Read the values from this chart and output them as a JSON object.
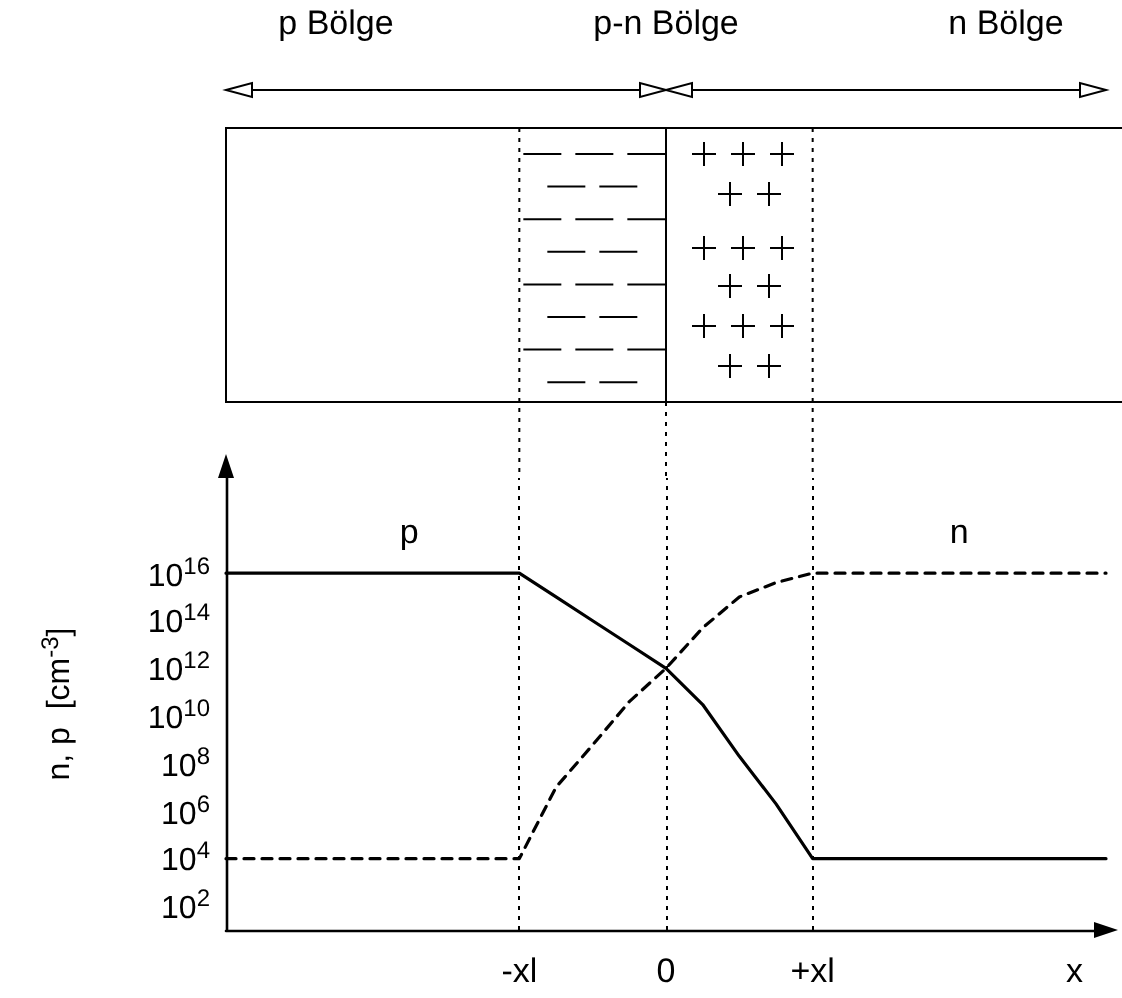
{
  "chart_data": {
    "type": "line",
    "ylabel": "n, p  [cm$^{-3}$]",
    "xlabel": "x",
    "annotations": [
      "p Bölge",
      "p-n Bölge",
      "n Bölge"
    ],
    "log": "y",
    "grid": false,
    "legend": false,
    "marker": "none",
    "categories": [
      null,
      null,
      null,
      null,
      null,
      null,
      null,
      null,
      "-xl",
      null,
      null,
      null,
      "0",
      null,
      null,
      null,
      "+xl",
      null,
      null,
      null,
      null,
      null,
      null,
      null,
      null
    ],
    "ylim": [
      10,
      1e+20
    ],
    "yticks": [
      {
        "value": 100,
        "label": "10$^{2}$"
      },
      {
        "value": 10000,
        "label": "10$^{4}$"
      },
      {
        "value": 1000000.0,
        "label": "10$^{6}$"
      },
      {
        "value": 100000000.0,
        "label": "10$^{8}$"
      },
      {
        "value": 10000000000.0,
        "label": "10$^{10}$"
      },
      {
        "value": 1000000000000.0,
        "label": "10$^{12}$"
      },
      {
        "value": 100000000000000.0,
        "label": "10$^{14}$"
      },
      {
        "value": 1e+16,
        "label": "10$^{16}$"
      }
    ],
    "ref_lines": [
      {
        "axis": "x",
        "value": "-xl",
        "line_style": "dotted"
      },
      {
        "axis": "x",
        "value": "0",
        "line_style": "dotted"
      },
      {
        "axis": "x",
        "value": "+xl",
        "line_style": "dotted"
      }
    ],
    "series": [
      {
        "name": "p",
        "color": "#000000",
        "line_style": "solid",
        "values": [
          1e+16,
          1e+16,
          1e+16,
          1e+16,
          1e+16,
          1e+16,
          1e+16,
          1e+16,
          1e+16,
          1000000000000000.0,
          100000000000000.0,
          10000000000000.0,
          1000000000000.0,
          30000000000.0,
          200000000.0,
          2000000.0,
          10000,
          10000,
          10000,
          10000,
          10000,
          10000,
          10000,
          10000,
          10000
        ]
      },
      {
        "name": "n",
        "color": "#000000",
        "line_style": "dashed",
        "values": [
          10000,
          10000,
          10000,
          10000,
          10000,
          10000,
          10000,
          10000,
          10000,
          10000000.0,
          600000000.0,
          40000000000.0,
          1000000000000.0,
          50000000000000.0,
          1000000000000000.0,
          4000000000000000.0,
          1e+16,
          1e+16,
          1e+16,
          1e+16,
          1e+16,
          1e+16,
          1e+16,
          1e+16,
          1e+16
        ]
      }
    ]
  }
}
